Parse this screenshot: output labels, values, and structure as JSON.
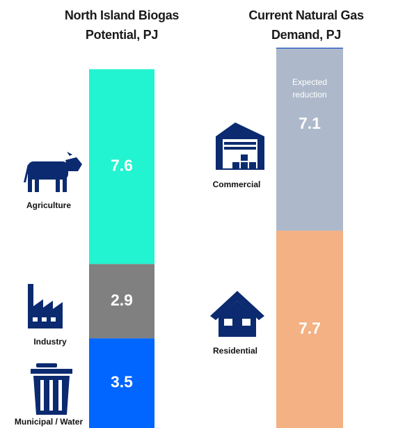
{
  "chart_data": [
    {
      "type": "stacked_bar",
      "title": "North Island Biogas Potential, PJ",
      "categories": [
        "Agriculture",
        "Industry",
        "Municipal / Water"
      ],
      "values": [
        7.6,
        2.9,
        3.5
      ],
      "colors": [
        "#22f3d0",
        "#808080",
        "#0066ff"
      ]
    },
    {
      "type": "stacked_bar",
      "title": "Current Natural Gas Demand, PJ",
      "categories": [
        "Commercial",
        "Residential"
      ],
      "values": [
        7.1,
        7.7
      ],
      "colors": [
        "#adb9ca",
        "#f4b183"
      ],
      "annotation": "Expected reduction"
    }
  ]
}
